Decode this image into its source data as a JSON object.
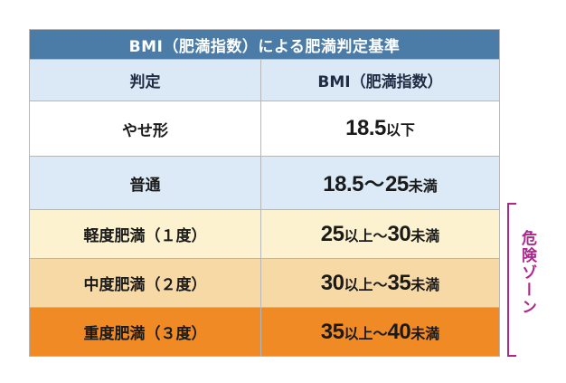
{
  "table": {
    "title": "BMI（肥満指数）による肥満判定基準",
    "header": {
      "left": "判定",
      "right": "BMI（肥満指数）"
    },
    "rows": [
      {
        "label": "やせ形",
        "n1": "18.5",
        "t1": "以下",
        "n2": "",
        "t2": ""
      },
      {
        "label": "普通",
        "n1": "18.5",
        "t1": "〜",
        "n2": "25",
        "t2": "未満"
      },
      {
        "label": "軽度肥満（１度）",
        "n1": "25",
        "t1": "以上〜",
        "n2": "30",
        "t2": "未満"
      },
      {
        "label": "中度肥満（２度）",
        "n1": "30",
        "t1": "以上〜",
        "n2": "35",
        "t2": "未満"
      },
      {
        "label": "重度肥満（３度）",
        "n1": "35",
        "t1": "以上〜",
        "n2": "40",
        "t2": "未満"
      }
    ]
  },
  "zone_label": "危険ゾーン",
  "colors": {
    "title_bg": "#4b7ba7",
    "header_bg": "#dbe8f6",
    "normal_bg": "#dce9f6",
    "mild_bg": "#fdf2cf",
    "moderate_bg": "#f7d9a6",
    "severe_bg": "#ef8a25",
    "zone_color": "#b0268a"
  }
}
